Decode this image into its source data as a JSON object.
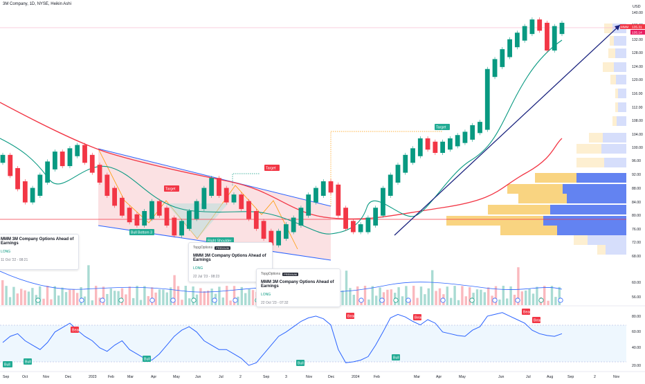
{
  "header": {
    "title": "3M Company, 1D, NYSE, Heikin Ashi"
  },
  "axis": {
    "currency": "USD",
    "price_ticks": [
      "140.00",
      "136.00",
      "132.00",
      "128.00",
      "124.00",
      "120.00",
      "116.00",
      "112.00",
      "108.00",
      "104.00",
      "100.00",
      "96.00",
      "92.00",
      "88.00",
      "84.00",
      "80.00",
      "76.00",
      "72.00",
      "68.00"
    ],
    "volume_ticks": [
      "60.00",
      "56.00"
    ],
    "rsi_ticks": [
      "80.00",
      "60.00",
      "40.00",
      "20.00"
    ],
    "time_ticks": [
      "Sep",
      "Oct",
      "Nov",
      "Dec",
      "2023",
      "Feb",
      "Mar",
      "Apr",
      "May",
      "Jun",
      "Jul",
      "2",
      "Sep",
      "3",
      "Nov",
      "Dec",
      "2024",
      "Feb",
      "Mar",
      "Apr",
      "May",
      "Jun",
      "Jul",
      "Aug",
      "Sep",
      "2",
      "Nov",
      "2025"
    ]
  },
  "price_badges": {
    "symbol": "MMM",
    "last": "135.31",
    "prev": "135.14"
  },
  "labels": {
    "target_1": "Target",
    "target_2": "Target",
    "target_3": "Target",
    "bottom": "Bottom 3",
    "bull": "Bull",
    "right_shoulder": "Right Shoulder",
    "bear": "Bear"
  },
  "ideas": [
    {
      "author": "TopgOptions",
      "badge": "PREMIUM",
      "headline": "MMM 3M Company Options Ahead of Earnings",
      "direction": "LONG",
      "timestamp": "11 Oct '22 - 08:21"
    },
    {
      "author": "TopgOptions",
      "badge": "PREMIUM",
      "headline": "MMM 3M Company Options Ahead of Earnings",
      "direction": "LONG",
      "timestamp": "22 Jul '23 - 08:23"
    },
    {
      "author": "TopgOptions",
      "badge": "PREMIUM",
      "headline": "MMM 3M Company Options Ahead of Earnings",
      "direction": "LONG",
      "timestamp": "22 Oct '23 - 07:32"
    }
  ],
  "colors": {
    "up": "#089981",
    "down": "#f23645",
    "ema_fast": "#089981",
    "ema_slow": "#f23645",
    "trend": "#1a237e",
    "channel_fill": "#f8c8cc",
    "vp_up": "#f9d27a",
    "vp_down": "#5b7cf0",
    "rsi": "#2962ff"
  },
  "chart_data": {
    "type": "line",
    "title": "3M Company, 1D, NYSE, Heikin Ashi",
    "xlabel": "",
    "ylabel": "USD",
    "ylim": [
      67,
      142
    ],
    "series": [
      {
        "name": "",
        "values": [
          96,
          92,
          88,
          84,
          86,
          90,
          94,
          97,
          95,
          98,
          99,
          96,
          93,
          90,
          86,
          83,
          80,
          78,
          77,
          79,
          82,
          80,
          77,
          74,
          76,
          79,
          82,
          86,
          89,
          86,
          84,
          84,
          82,
          79,
          76,
          73,
          71,
          73,
          75,
          77,
          80,
          84,
          86,
          88,
          87,
          80,
          76,
          75,
          75,
          77,
          80,
          86,
          90,
          93,
          96,
          98,
          101,
          100,
          99,
          100,
          101,
          102,
          103,
          105,
          106,
          122,
          125,
          128,
          131,
          133,
          135,
          137,
          136,
          130,
          135,
          136
        ]
      }
    ],
    "rsi": {
      "ylim": [
        15,
        85
      ],
      "values": [
        48,
        55,
        58,
        50,
        45,
        40,
        48,
        60,
        65,
        70,
        62,
        55,
        50,
        42,
        38,
        45,
        50,
        40,
        35,
        30,
        28,
        35,
        45,
        55,
        62,
        66,
        60,
        50,
        45,
        40,
        40,
        35,
        30,
        22,
        25,
        35,
        45,
        55,
        60,
        66,
        72,
        76,
        78,
        75,
        68,
        40,
        25,
        26,
        28,
        32,
        45,
        60,
        76,
        80,
        77,
        72,
        68,
        74,
        70,
        60,
        58,
        56,
        55,
        62,
        66,
        78,
        80,
        82,
        78,
        74,
        70,
        62,
        58,
        56,
        55,
        58
      ]
    }
  }
}
